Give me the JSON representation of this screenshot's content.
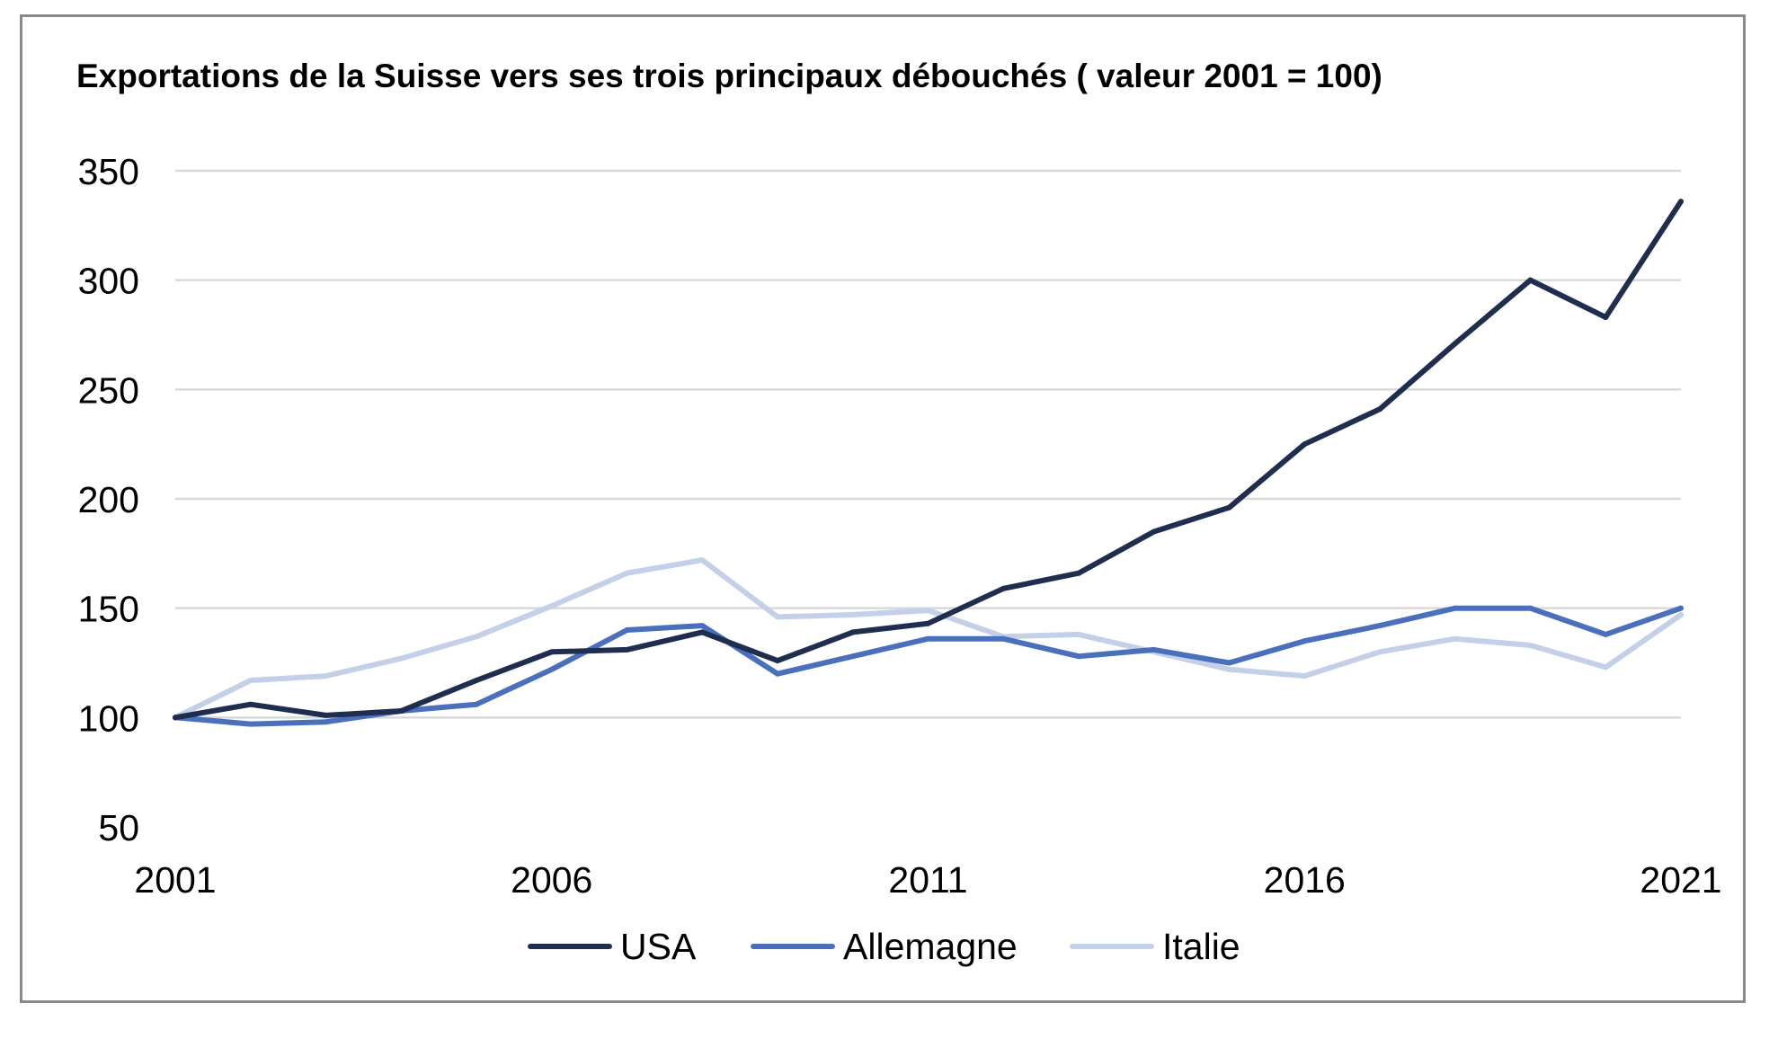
{
  "chart_data": {
    "type": "line",
    "title": "Exportations de la Suisse vers ses trois principaux débouchés ( valeur 2001 = 100)",
    "xlabel": "",
    "ylabel": "",
    "x": [
      2001,
      2002,
      2003,
      2004,
      2005,
      2006,
      2007,
      2008,
      2009,
      2010,
      2011,
      2012,
      2013,
      2014,
      2015,
      2016,
      2017,
      2018,
      2019,
      2020,
      2021
    ],
    "x_tick_labels": [
      "2001",
      "2006",
      "2011",
      "2016",
      "2021"
    ],
    "y_ticks": [
      50,
      100,
      150,
      200,
      250,
      300,
      350
    ],
    "ylim": [
      50,
      350
    ],
    "grid": true,
    "legend_position": "bottom",
    "series": [
      {
        "name": "USA",
        "color": "#1f2d4f",
        "values": [
          100,
          106,
          101,
          103,
          117,
          130,
          131,
          139,
          126,
          139,
          143,
          159,
          166,
          185,
          196,
          225,
          241,
          271,
          300,
          283,
          336
        ]
      },
      {
        "name": "Allemagne",
        "color": "#4a6fbc",
        "values": [
          100,
          97,
          98,
          103,
          106,
          122,
          140,
          142,
          120,
          128,
          136,
          136,
          128,
          131,
          125,
          135,
          142,
          150,
          150,
          138,
          150
        ]
      },
      {
        "name": "Italie",
        "color": "#c4d0e8",
        "values": [
          100,
          117,
          119,
          127,
          137,
          151,
          166,
          172,
          146,
          147,
          149,
          137,
          138,
          130,
          122,
          119,
          130,
          136,
          133,
          123,
          147
        ]
      }
    ]
  }
}
